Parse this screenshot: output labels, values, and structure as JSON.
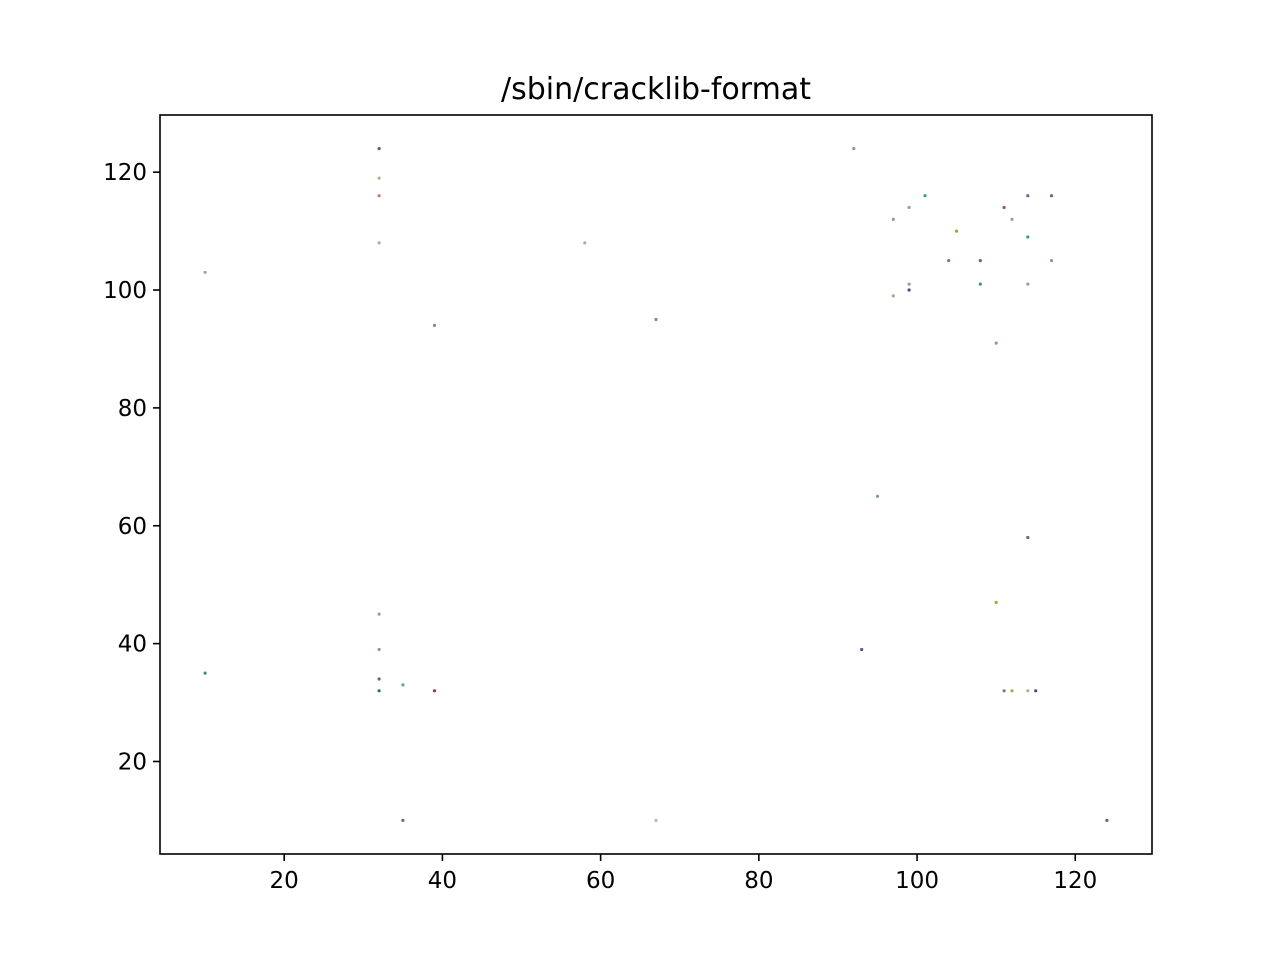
{
  "chart_data": {
    "type": "scatter",
    "title": "/sbin/cracklib-format",
    "xlabel": "",
    "ylabel": "",
    "xlim": [
      4.3,
      129.7
    ],
    "ylim": [
      4.3,
      129.7
    ],
    "x_ticks": [
      20,
      40,
      60,
      80,
      100,
      120
    ],
    "y_ticks": [
      20,
      40,
      60,
      80,
      100,
      120
    ],
    "x_tick_labels": [
      "20",
      "40",
      "60",
      "80",
      "100",
      "120"
    ],
    "y_tick_labels": [
      "20",
      "40",
      "60",
      "80",
      "100",
      "120"
    ],
    "grid": false,
    "points": [
      {
        "x": 10,
        "y": 103,
        "color": "#9aa6a0"
      },
      {
        "x": 10,
        "y": 35,
        "color": "#3d8f86"
      },
      {
        "x": 32,
        "y": 124,
        "color": "#5a5a8c"
      },
      {
        "x": 32,
        "y": 119,
        "color": "#b8b08a"
      },
      {
        "x": 32,
        "y": 116,
        "color": "#c27a7a"
      },
      {
        "x": 32,
        "y": 108,
        "color": "#a8b4ae"
      },
      {
        "x": 32,
        "y": 45,
        "color": "#8aa89c"
      },
      {
        "x": 32,
        "y": 39,
        "color": "#8c9c90"
      },
      {
        "x": 32,
        "y": 34,
        "color": "#5a6e78"
      },
      {
        "x": 32,
        "y": 32,
        "color": "#2a6a7a"
      },
      {
        "x": 35,
        "y": 33,
        "color": "#6aa0a0"
      },
      {
        "x": 35,
        "y": 10,
        "color": "#6a6a8a"
      },
      {
        "x": 39,
        "y": 94,
        "color": "#9a7a9a"
      },
      {
        "x": 39,
        "y": 32,
        "color": "#a0304a"
      },
      {
        "x": 58,
        "y": 108,
        "color": "#b0b0a0"
      },
      {
        "x": 67,
        "y": 95,
        "color": "#7a8a9a"
      },
      {
        "x": 67,
        "y": 10,
        "color": "#b8b8b0"
      },
      {
        "x": 92,
        "y": 124,
        "color": "#8a9a9a"
      },
      {
        "x": 93,
        "y": 39,
        "color": "#4a5a8a"
      },
      {
        "x": 95,
        "y": 65,
        "color": "#7a9a8a"
      },
      {
        "x": 97,
        "y": 112,
        "color": "#8a9aaa"
      },
      {
        "x": 97,
        "y": 99,
        "color": "#b0a890"
      },
      {
        "x": 99,
        "y": 114,
        "color": "#a0a080"
      },
      {
        "x": 99,
        "y": 101,
        "color": "#9a9ab0"
      },
      {
        "x": 99,
        "y": 100,
        "color": "#4a4a7a"
      },
      {
        "x": 101,
        "y": 116,
        "color": "#3a9aa0"
      },
      {
        "x": 104,
        "y": 105,
        "color": "#9a6a8a"
      },
      {
        "x": 105,
        "y": 110,
        "color": "#b0a020"
      },
      {
        "x": 108,
        "y": 105,
        "color": "#5a6a8a"
      },
      {
        "x": 108,
        "y": 101,
        "color": "#4a8a9a"
      },
      {
        "x": 110,
        "y": 91,
        "color": "#8a9aa0"
      },
      {
        "x": 110,
        "y": 47,
        "color": "#b0a040"
      },
      {
        "x": 111,
        "y": 114,
        "color": "#a0506a"
      },
      {
        "x": 111,
        "y": 32,
        "color": "#8a6aa0"
      },
      {
        "x": 112,
        "y": 112,
        "color": "#a09aa0"
      },
      {
        "x": 112,
        "y": 32,
        "color": "#9ab040"
      },
      {
        "x": 114,
        "y": 116,
        "color": "#5a6aa0"
      },
      {
        "x": 114,
        "y": 109,
        "color": "#3a9a9a"
      },
      {
        "x": 114,
        "y": 101,
        "color": "#9aa0a0"
      },
      {
        "x": 114,
        "y": 58,
        "color": "#6a6a7a"
      },
      {
        "x": 114,
        "y": 32,
        "color": "#a8b0b0"
      },
      {
        "x": 115,
        "y": 32,
        "color": "#4a4a8a"
      },
      {
        "x": 117,
        "y": 116,
        "color": "#5a6a8a"
      },
      {
        "x": 117,
        "y": 105,
        "color": "#8aa0a0"
      },
      {
        "x": 124,
        "y": 10,
        "color": "#5a6a7a"
      }
    ]
  }
}
